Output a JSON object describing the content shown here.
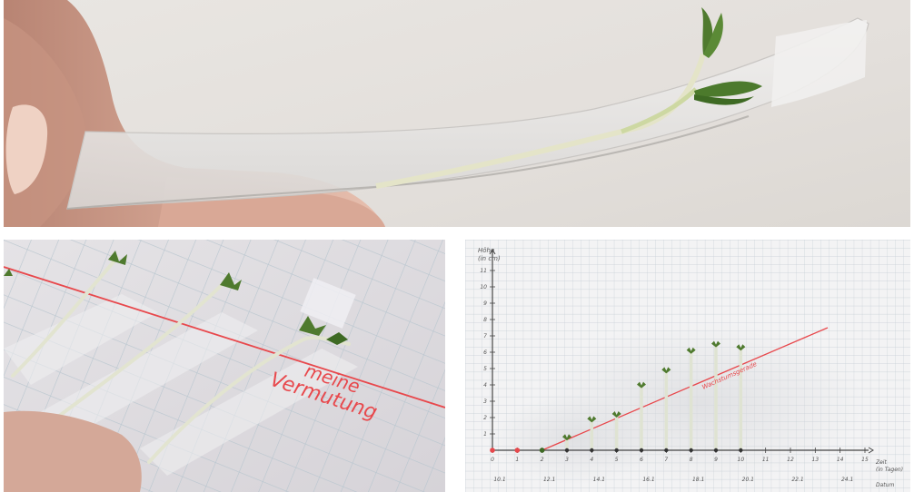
{
  "left_photo": {
    "annotation_line1": "meine",
    "annotation_line2": "Vermutung"
  },
  "chart_photo": {
    "annotation": "Wachstumsgerade",
    "chart_data": {
      "type": "scatter",
      "title": "",
      "ylabel": "Höhe\n(in cm)",
      "xlabel": "Zeit\n(in Tagen)",
      "xlabel_secondary": "Datum",
      "xlim": [
        0,
        15
      ],
      "ylim": [
        0,
        12
      ],
      "x_ticks": [
        "0",
        "1",
        "2",
        "3",
        "4",
        "5",
        "6",
        "7",
        "8",
        "9",
        "10",
        "11",
        "12",
        "13",
        "14",
        "15"
      ],
      "y_ticks": [
        "1",
        "2",
        "3",
        "4",
        "5",
        "6",
        "7",
        "8",
        "9",
        "10",
        "11"
      ],
      "date_ticks": [
        "10.1",
        "12.1",
        "14.1",
        "16.1",
        "18.1",
        "20.1",
        "22.1",
        "24.1"
      ],
      "series": [
        {
          "x": [
            0,
            1,
            2,
            3,
            4,
            5,
            6,
            7,
            8,
            9,
            10
          ],
          "y": [
            0,
            0,
            0.3,
            0.6,
            1.7,
            2.0,
            3.8,
            4.7,
            5.9,
            6.3,
            6.1
          ]
        }
      ],
      "trend_line": {
        "x": [
          2,
          13.5
        ],
        "y": [
          0,
          7.5
        ]
      }
    }
  },
  "colors": {
    "red_ink": "#e8484c",
    "grid": "#b9c6cf",
    "seedling_stem": "#dfe3d2",
    "leaf": "#4f7a2e"
  }
}
